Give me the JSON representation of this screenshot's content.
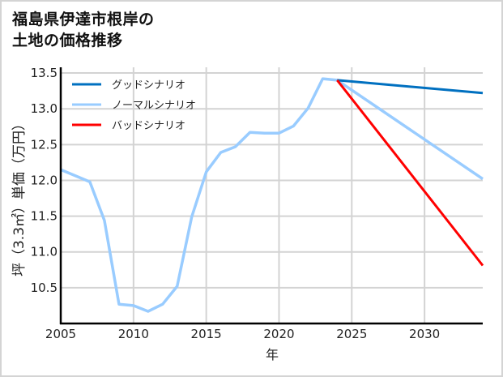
{
  "title": {
    "line1": "福島県伊達市根岸の",
    "line2": "土地の価格推移"
  },
  "colors": {
    "good": "#0070c0",
    "normal": "#99ccff",
    "bad": "#ff0000",
    "grid": "#d3d3d3",
    "axis": "#000000"
  },
  "chart_data": {
    "type": "line",
    "title": "福島県伊達市根岸の土地の価格推移",
    "xlabel": "年",
    "ylabel": "坪（3.3㎡）単価（万円）",
    "xlim": [
      2005,
      2034
    ],
    "ylim": [
      10.0,
      13.58
    ],
    "xticks": [
      2005,
      2010,
      2015,
      2020,
      2025,
      2030
    ],
    "yticks": [
      10.5,
      11.0,
      11.5,
      12.0,
      12.5,
      13.0,
      13.5
    ],
    "ytick_labels": [
      "10.5",
      "11.0",
      "11.5",
      "12.0",
      "12.5",
      "13.0",
      "13.5"
    ],
    "grid": true,
    "legend_position": "upper left",
    "series": [
      {
        "name": "グッドシナリオ",
        "color": "#0070c0",
        "x": [
          2024,
          2034
        ],
        "values": [
          13.4,
          13.22
        ]
      },
      {
        "name": "ノーマルシナリオ",
        "color": "#99ccff",
        "x": [
          2005,
          2007,
          2008,
          2009,
          2010,
          2011,
          2012,
          2013,
          2014,
          2015,
          2016,
          2017,
          2018,
          2019,
          2020,
          2021,
          2022,
          2023,
          2024,
          2034
        ],
        "values": [
          12.15,
          11.98,
          11.44,
          10.27,
          10.25,
          10.17,
          10.27,
          10.52,
          11.49,
          12.12,
          12.39,
          12.47,
          12.67,
          12.66,
          12.66,
          12.76,
          13.01,
          13.42,
          13.4,
          12.02
        ]
      },
      {
        "name": "バッドシナリオ",
        "color": "#ff0000",
        "x": [
          2024,
          2034
        ],
        "values": [
          13.4,
          10.81
        ]
      }
    ]
  }
}
